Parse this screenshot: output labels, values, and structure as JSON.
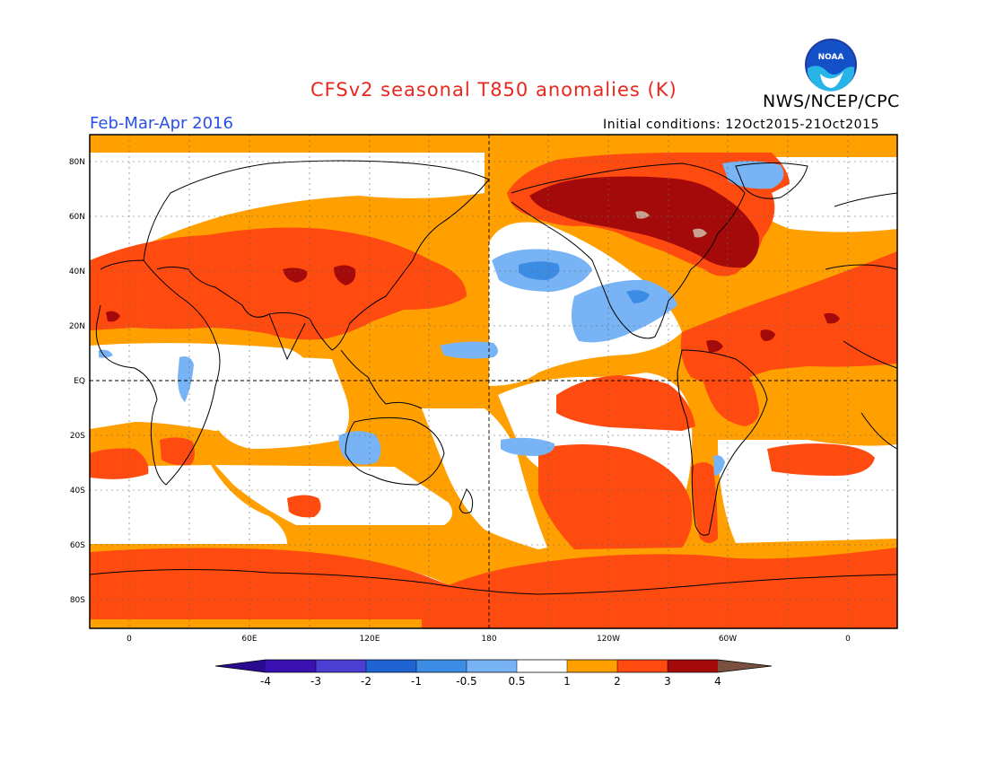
{
  "header": {
    "title": "CFSv2 seasonal T850 anomalies (K)",
    "agency": "NWS/NCEP/CPC",
    "season": "Feb-Mar-Apr 2016",
    "initial_conditions": "Initial conditions: 12Oct2015-21Oct2015",
    "logo_text": "NOAA"
  },
  "map": {
    "lat_labels": [
      "80N",
      "60N",
      "40N",
      "20N",
      "EQ",
      "20S",
      "40S",
      "60S",
      "80S"
    ],
    "lon_labels": [
      "0",
      "60E",
      "120E",
      "180",
      "120W",
      "60W",
      "0"
    ]
  },
  "colorbar": {
    "tick_labels": [
      "-4",
      "-3",
      "-2",
      "-1",
      "-0.5",
      "0.5",
      "1",
      "2",
      "3",
      "4"
    ],
    "colors": [
      "#3b10b0",
      "#4b3fd4",
      "#1e64d2",
      "#3c8ce6",
      "#78b4f5",
      "#ffffff",
      "#ffa000",
      "#ff4a10",
      "#a50a0a",
      "#c8a090"
    ],
    "under_color": "#2a0a90",
    "over_color": "#7a5040"
  },
  "legend_colors": {
    "weak_warm": "#ffa000",
    "warm": "#ff4a10",
    "strong_warm": "#a50a0a",
    "extreme_warm": "#c8a090",
    "weak_cool": "#78b4f5",
    "cool": "#3c8ce6"
  }
}
